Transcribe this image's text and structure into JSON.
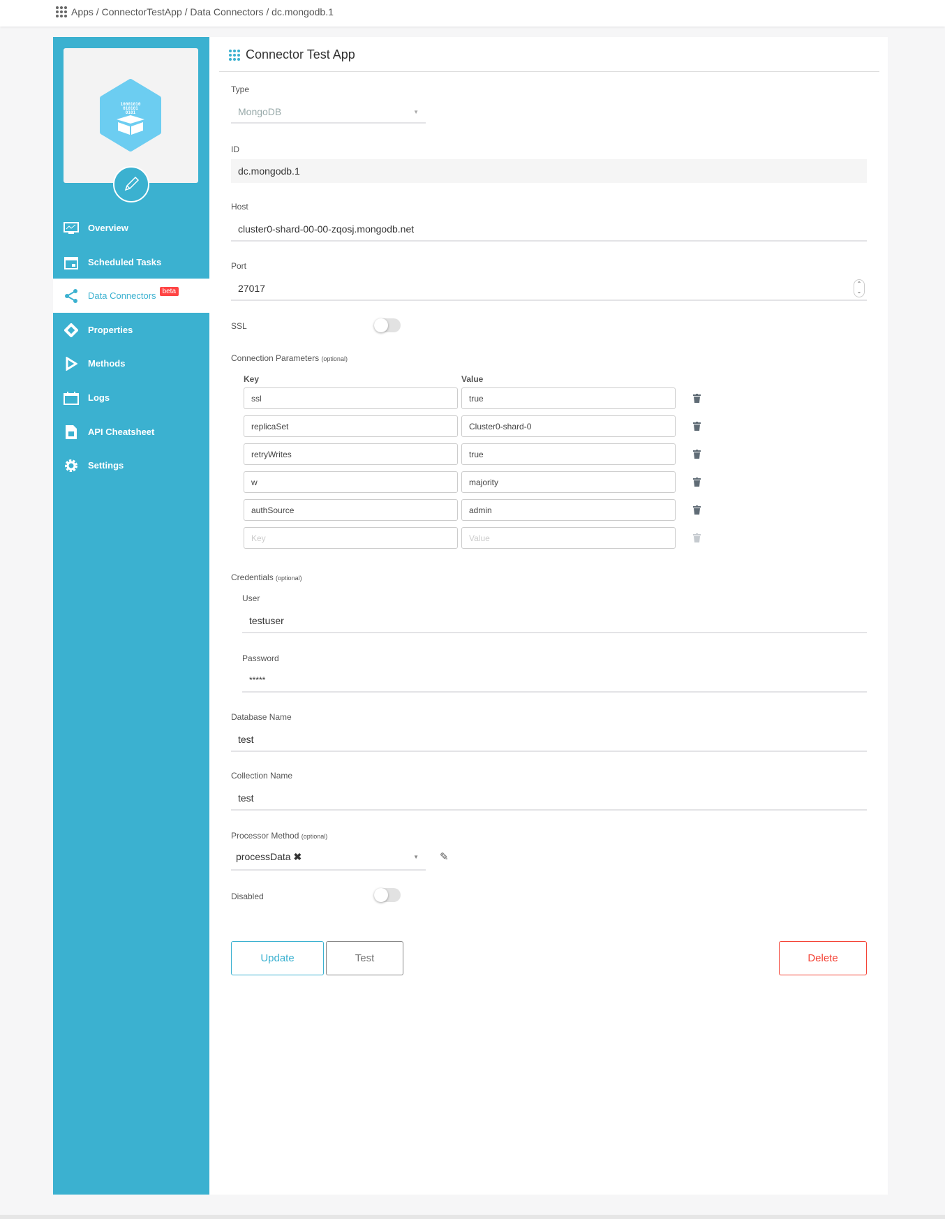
{
  "breadcrumb": {
    "items": [
      "Apps",
      "ConnectorTestApp",
      "Data Connectors",
      "dc.mongodb.1"
    ],
    "text": "Apps / ConnectorTestApp / Data Connectors / dc.mongodb.1"
  },
  "sidebar": {
    "items": [
      {
        "label": "Overview",
        "icon": "monitor-chart-icon"
      },
      {
        "label": "Scheduled Tasks",
        "icon": "calendar-icon"
      },
      {
        "label": "Data Connectors",
        "icon": "share-icon",
        "badge": "beta",
        "active": true
      },
      {
        "label": "Properties",
        "icon": "diamond-icon"
      },
      {
        "label": "Methods",
        "icon": "play-icon"
      },
      {
        "label": "Logs",
        "icon": "log-calendar-icon"
      },
      {
        "label": "API Cheatsheet",
        "icon": "document-box-icon"
      },
      {
        "label": "Settings",
        "icon": "gear-icon"
      }
    ],
    "logo_text": "10001010 010101 0101"
  },
  "main": {
    "title": "Connector Test App",
    "type": {
      "label": "Type",
      "value": "MongoDB"
    },
    "id": {
      "label": "ID",
      "value": "dc.mongodb.1"
    },
    "host": {
      "label": "Host",
      "value": "cluster0-shard-00-00-zqosj.mongodb.net"
    },
    "port": {
      "label": "Port",
      "value": "27017"
    },
    "ssl": {
      "label": "SSL",
      "on": false
    },
    "params": {
      "label": "Connection Parameters",
      "optional": "(optional)",
      "key_header": "Key",
      "value_header": "Value",
      "rows": [
        {
          "key": "ssl",
          "value": "true"
        },
        {
          "key": "replicaSet",
          "value": "Cluster0-shard-0"
        },
        {
          "key": "retryWrites",
          "value": "true"
        },
        {
          "key": "w",
          "value": "majority"
        },
        {
          "key": "authSource",
          "value": "admin"
        }
      ],
      "key_placeholder": "Key",
      "value_placeholder": "Value"
    },
    "credentials": {
      "label": "Credentials",
      "optional": "(optional)",
      "user_label": "User",
      "user": "testuser",
      "password_label": "Password",
      "password": "*****"
    },
    "database": {
      "label": "Database Name",
      "value": "test"
    },
    "collection": {
      "label": "Collection Name",
      "value": "test"
    },
    "processor": {
      "label": "Processor Method",
      "optional": "(optional)",
      "value": "processData"
    },
    "disabled": {
      "label": "Disabled",
      "on": false
    },
    "buttons": {
      "update": "Update",
      "test": "Test",
      "delete": "Delete"
    }
  },
  "colors": {
    "accent": "#3bb1d0",
    "danger": "#f44336",
    "badge": "#ff4d4d"
  }
}
